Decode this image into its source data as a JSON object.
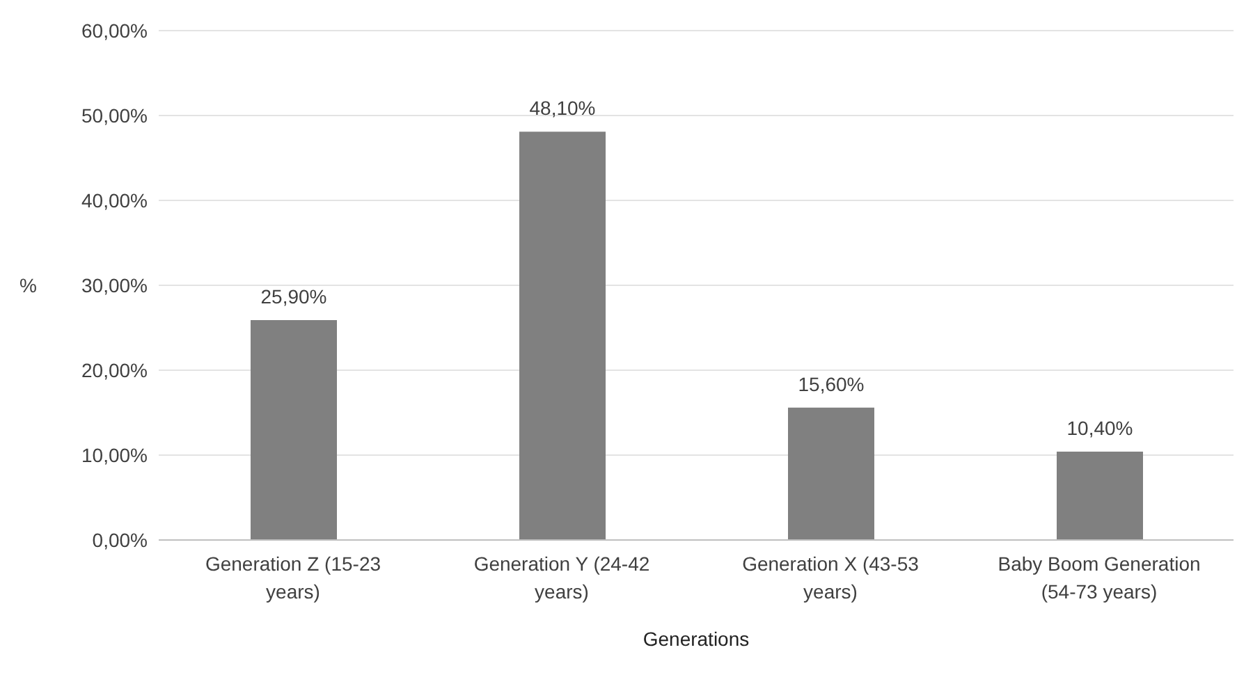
{
  "chart_data": {
    "type": "bar",
    "xlabel": "Generations",
    "ylabel": "%",
    "categories": [
      "Generation Z (15-23 years)",
      "Generation Y (24-42 years)",
      "Generation X (43-53 years)",
      "Baby Boom Generation (54-73 years)"
    ],
    "values": [
      25.9,
      48.1,
      15.6,
      10.4
    ],
    "value_labels": [
      "25,90%",
      "48,10%",
      "15,60%",
      "10,40%"
    ],
    "color": "#808080",
    "ylim": [
      0,
      60
    ],
    "yticks": [
      {
        "value": 0,
        "label": "0,00%"
      },
      {
        "value": 10,
        "label": "10,00%"
      },
      {
        "value": 20,
        "label": "20,00%"
      },
      {
        "value": 30,
        "label": "30,00%"
      },
      {
        "value": 40,
        "label": "40,00%"
      },
      {
        "value": 50,
        "label": "50,00%"
      },
      {
        "value": 60,
        "label": "60,00%"
      }
    ],
    "grid": "y"
  }
}
